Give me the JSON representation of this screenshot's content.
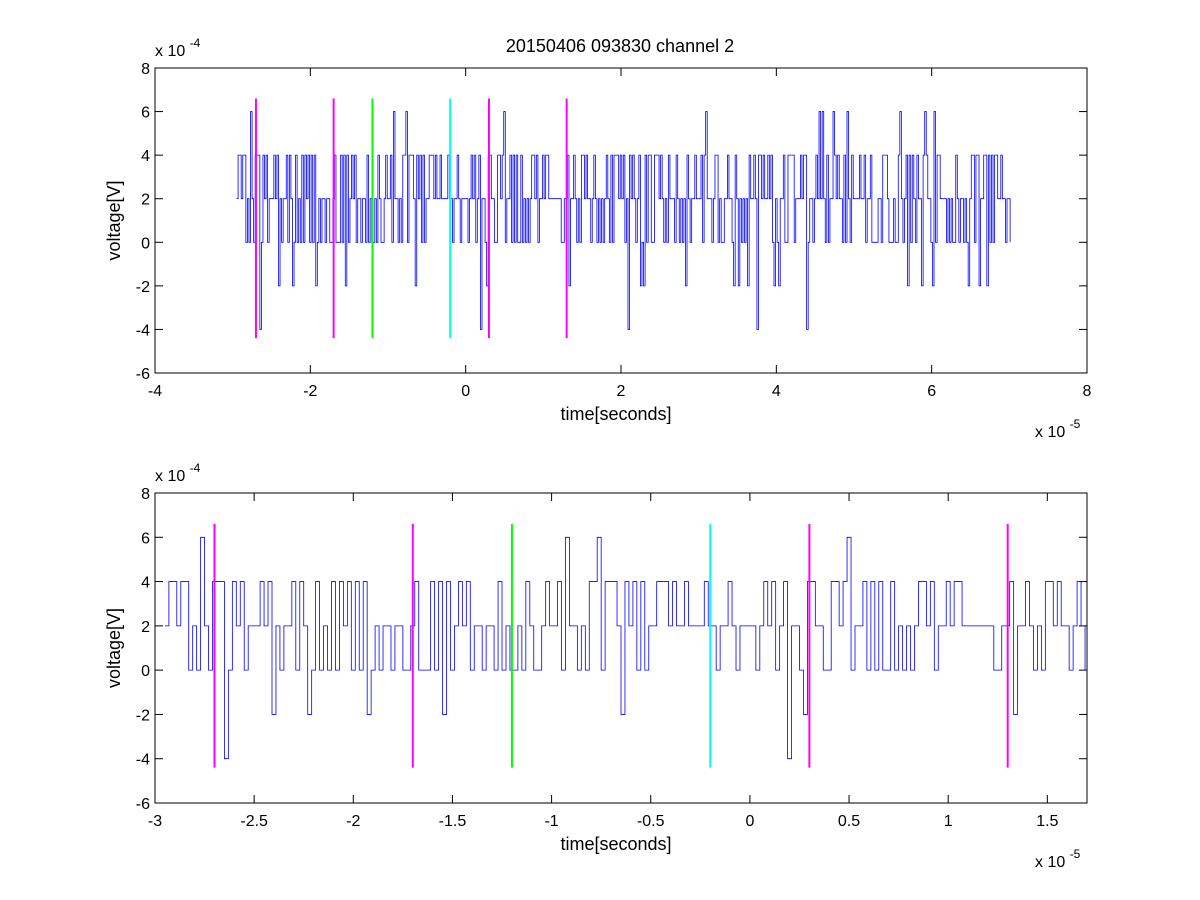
{
  "figure": {
    "title": "20150406 093830 channel 2"
  },
  "chart_data": [
    {
      "type": "line",
      "title": "20150406 093830 channel 2",
      "xlabel": "time[seconds]",
      "ylabel": "voltage[V]",
      "xlim": [
        -4e-05,
        8e-05
      ],
      "ylim": [
        -0.0006,
        0.0008
      ],
      "x_ticks": [
        -4e-05,
        -2e-05,
        0,
        2e-05,
        4e-05,
        6e-05,
        8e-05
      ],
      "x_tick_labels": [
        "-4",
        "-2",
        "0",
        "2",
        "4",
        "6",
        "8"
      ],
      "y_ticks": [
        -0.0006,
        -0.0004,
        -0.0002,
        0,
        0.0002,
        0.0004,
        0.0006,
        0.0008
      ],
      "y_tick_labels": [
        "-6",
        "-4",
        "-2",
        "0",
        "2",
        "4",
        "6",
        "8"
      ],
      "x_exponent_label": "x 10",
      "x_exponent": "-5",
      "y_exponent_label": "x 10",
      "y_exponent": "-4",
      "grid": false,
      "series": [
        {
          "color": "#0000ff",
          "x_start": -2.95e-05,
          "x_end": 7e-05,
          "step": 2e-07,
          "levels_e4": [
            0,
            2,
            4,
            6
          ],
          "typical_range_e4": [
            0,
            4
          ],
          "min_e4": -4,
          "max_e4": 6
        }
      ],
      "markers": [
        {
          "x": -2.7e-05,
          "color": "#ff00ff",
          "y_bottom": -0.00044,
          "y_top": 0.00066
        },
        {
          "x": -1.7e-05,
          "color": "#ff00ff",
          "y_bottom": -0.00044,
          "y_top": 0.00066
        },
        {
          "x": -1.2e-05,
          "color": "#00ff00",
          "y_bottom": -0.00044,
          "y_top": 0.00066
        },
        {
          "x": -2e-06,
          "color": "#00ffff",
          "y_bottom": -0.00044,
          "y_top": 0.00066
        },
        {
          "x": 3e-06,
          "color": "#ff00ff",
          "y_bottom": -0.00044,
          "y_top": 0.00066
        },
        {
          "x": 1.3e-05,
          "color": "#ff00ff",
          "y_bottom": -0.00044,
          "y_top": 0.00066
        }
      ]
    },
    {
      "type": "line",
      "xlabel": "time[seconds]",
      "ylabel": "voltage[V]",
      "xlim": [
        -3e-05,
        1.7e-05
      ],
      "ylim": [
        -0.0006,
        0.0008
      ],
      "x_ticks": [
        -3e-05,
        -2.5e-05,
        -2e-05,
        -1.5e-05,
        -1e-05,
        -5e-06,
        0,
        5e-06,
        1e-05,
        1.5e-05
      ],
      "x_tick_labels": [
        "-3",
        "-2.5",
        "-2",
        "-1.5",
        "-1",
        "-0.5",
        "0",
        "0.5",
        "1",
        "1.5"
      ],
      "y_ticks": [
        -0.0006,
        -0.0004,
        -0.0002,
        0,
        0.0002,
        0.0004,
        0.0006,
        0.0008
      ],
      "y_tick_labels": [
        "-6",
        "-4",
        "-2",
        "0",
        "2",
        "4",
        "6",
        "8"
      ],
      "x_exponent_label": "x 10",
      "x_exponent": "-5",
      "y_exponent_label": "x 10",
      "y_exponent": "-4",
      "grid": false,
      "series": [
        {
          "color": "#0000ff",
          "x_start": -2.95e-05,
          "x_end": 1.7e-05,
          "step": 2e-07,
          "levels_e4": [
            0,
            2,
            4,
            6
          ],
          "typical_range_e4": [
            0,
            4
          ],
          "min_e4": -4,
          "max_e4": 6
        }
      ],
      "markers": [
        {
          "x": -2.7e-05,
          "color": "#ff00ff",
          "y_bottom": -0.00044,
          "y_top": 0.00066
        },
        {
          "x": -1.7e-05,
          "color": "#ff00ff",
          "y_bottom": -0.00044,
          "y_top": 0.00066
        },
        {
          "x": -1.2e-05,
          "color": "#00ff00",
          "y_bottom": -0.00044,
          "y_top": 0.00066
        },
        {
          "x": -2e-06,
          "color": "#00ffff",
          "y_bottom": -0.00044,
          "y_top": 0.00066
        },
        {
          "x": 3e-06,
          "color": "#ff00ff",
          "y_bottom": -0.00044,
          "y_top": 0.00066
        },
        {
          "x": 1.3e-05,
          "color": "#ff00ff",
          "y_bottom": -0.00044,
          "y_top": 0.00066
        }
      ]
    }
  ]
}
